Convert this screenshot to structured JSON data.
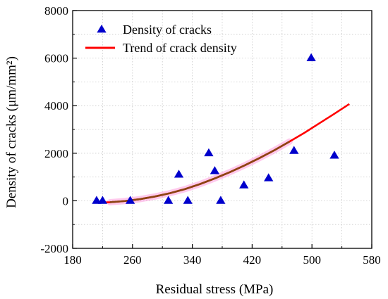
{
  "chart_data": {
    "type": "scatter",
    "xlabel": "Residual stress (MPa)",
    "ylabel": "Density of cracks (μm/mm²)",
    "xlim": [
      180,
      580
    ],
    "ylim": [
      -2000,
      8000
    ],
    "xticks": [
      180,
      260,
      340,
      420,
      500,
      580
    ],
    "yticks": [
      -2000,
      0,
      2000,
      4000,
      6000,
      8000
    ],
    "x_tick_labels": [
      "180",
      "260",
      "340",
      "420",
      "500",
      "580"
    ],
    "y_tick_labels": [
      "-2000",
      "0",
      "2000",
      "4000",
      "6000",
      "8000"
    ],
    "grid": true,
    "legend_position": "top-left",
    "series": [
      {
        "name": "Density of cracks",
        "kind": "scatter",
        "marker": "triangle",
        "color": "#0000cc",
        "points": [
          {
            "x": 212,
            "y": 0
          },
          {
            "x": 220,
            "y": 0
          },
          {
            "x": 257,
            "y": 0
          },
          {
            "x": 308,
            "y": 0
          },
          {
            "x": 322,
            "y": 1100
          },
          {
            "x": 334,
            "y": 0
          },
          {
            "x": 362,
            "y": 2000
          },
          {
            "x": 370,
            "y": 1250
          },
          {
            "x": 378,
            "y": 0
          },
          {
            "x": 409,
            "y": 650
          },
          {
            "x": 442,
            "y": 950
          },
          {
            "x": 476,
            "y": 2100
          },
          {
            "x": 499,
            "y": 6000
          },
          {
            "x": 530,
            "y": 1900
          }
        ]
      },
      {
        "name": "Trend of crack density",
        "kind": "line",
        "color": "#ff0000",
        "band_color": "#ff66cc",
        "inner_color": "#8b4513",
        "inner_x_range": [
          220,
          470
        ],
        "x": [
          215,
          230,
          250,
          270,
          290,
          310,
          330,
          350,
          370,
          390,
          410,
          430,
          450,
          470,
          490,
          510,
          530,
          550
        ],
        "y": [
          -80,
          -60,
          -10,
          70,
          180,
          320,
          490,
          700,
          940,
          1200,
          1490,
          1800,
          2130,
          2490,
          2860,
          3260,
          3660,
          4070
        ]
      }
    ]
  }
}
